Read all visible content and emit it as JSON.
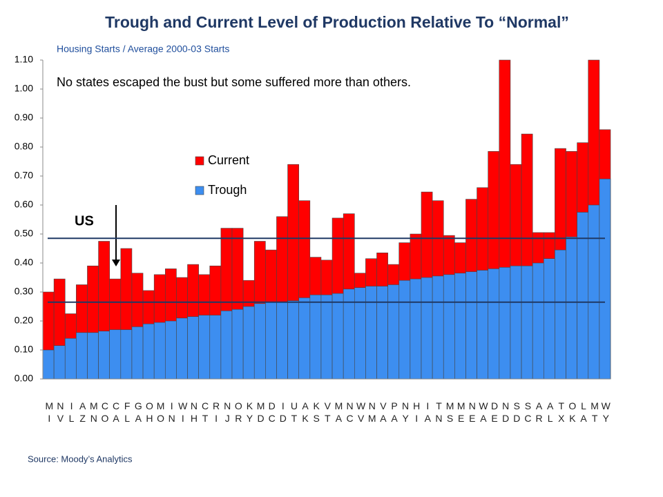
{
  "chart_data": {
    "type": "bar",
    "title": "Trough and Current Level of Production Relative To “Normal”",
    "subtitle": "Housing Starts / Average 2000-03 Starts",
    "annotation": "No states escaped the bust but some suffered more than others.",
    "source": "Source: Moody’s Analytics",
    "categories": [
      "MI",
      "NV",
      "IL",
      "AZ",
      "MN",
      "CO",
      "CA",
      "FL",
      "GA",
      "OH",
      "MO",
      "IN",
      "WI",
      "NH",
      "CT",
      "RI",
      "NJ",
      "OR",
      "KY",
      "MD",
      "DC",
      "ID",
      "UT",
      "AK",
      "KS",
      "VT",
      "MA",
      "NC",
      "WV",
      "NM",
      "VA",
      "PA",
      "NY",
      "HI",
      "IA",
      "TN",
      "MS",
      "ME",
      "NE",
      "WA",
      "DE",
      "ND",
      "SD",
      "SC",
      "AR",
      "AL",
      "TX",
      "OK",
      "LA",
      "MT",
      "WY"
    ],
    "series": [
      {
        "name": "Current",
        "color": "#ff0000",
        "values": [
          0.3,
          0.345,
          0.225,
          0.325,
          0.39,
          0.475,
          0.345,
          0.45,
          0.365,
          0.305,
          0.36,
          0.38,
          0.35,
          0.395,
          0.36,
          0.39,
          0.52,
          0.52,
          0.34,
          0.475,
          0.445,
          0.56,
          0.74,
          0.615,
          0.42,
          0.41,
          0.555,
          0.57,
          0.365,
          0.415,
          0.435,
          0.395,
          0.47,
          0.5,
          0.645,
          0.615,
          0.495,
          0.47,
          0.62,
          0.66,
          0.785,
          1.1,
          0.74,
          0.845,
          0.505,
          0.505,
          0.795,
          0.785,
          0.815,
          1.1,
          0.86
        ]
      },
      {
        "name": "Trough",
        "color": "#3d8ef0",
        "values": [
          0.1,
          0.115,
          0.14,
          0.16,
          0.16,
          0.165,
          0.17,
          0.17,
          0.18,
          0.19,
          0.195,
          0.2,
          0.21,
          0.215,
          0.22,
          0.22,
          0.235,
          0.24,
          0.25,
          0.26,
          0.265,
          0.265,
          0.27,
          0.28,
          0.29,
          0.29,
          0.295,
          0.31,
          0.315,
          0.32,
          0.32,
          0.325,
          0.34,
          0.345,
          0.35,
          0.355,
          0.36,
          0.365,
          0.37,
          0.375,
          0.38,
          0.385,
          0.39,
          0.39,
          0.4,
          0.415,
          0.445,
          0.49,
          0.575,
          0.6,
          0.69
        ]
      }
    ],
    "us_label": "US",
    "us_lines": [
      0.485,
      0.265
    ],
    "ylim": [
      0,
      1.1
    ],
    "yticks": [
      {
        "value": 0,
        "label": "0.00"
      },
      {
        "value": 0.1,
        "label": "0.10"
      },
      {
        "value": 0.2,
        "label": "0.20"
      },
      {
        "value": 0.3,
        "label": "0.30"
      },
      {
        "value": 0.4,
        "label": "0.40"
      },
      {
        "value": 0.5,
        "label": "0.50"
      },
      {
        "value": 0.6,
        "label": "0.60"
      },
      {
        "value": 0.7,
        "label": "0.70"
      },
      {
        "value": 0.8,
        "label": "0.80"
      },
      {
        "value": 0.9,
        "label": "0.90"
      },
      {
        "value": 1,
        "label": "1.00"
      },
      {
        "value": 1.1,
        "label": "1.10"
      }
    ],
    "grid": false
  }
}
